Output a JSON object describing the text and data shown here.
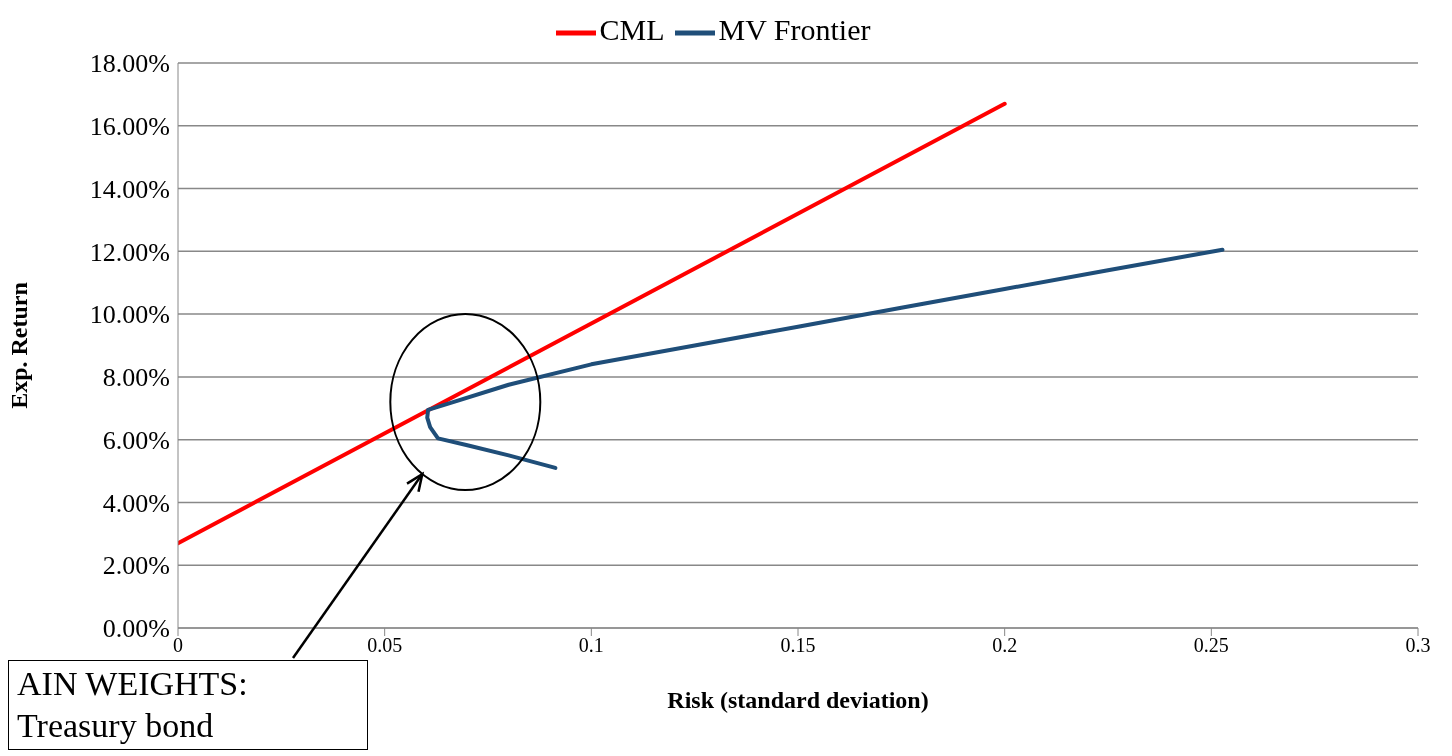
{
  "chart_data": {
    "type": "line",
    "xlabel": "Risk (standard deviation)",
    "ylabel": "Exp. Return",
    "xlim": [
      0,
      0.3
    ],
    "xticks": [
      0,
      0.05,
      0.1,
      0.15,
      0.2,
      0.25,
      0.3
    ],
    "ylim": [
      0,
      0.18
    ],
    "yticks": [
      {
        "value": 0,
        "label": "0.00%"
      },
      {
        "value": 0.02,
        "label": "2.00%"
      },
      {
        "value": 0.04,
        "label": "4.00%"
      },
      {
        "value": 0.06,
        "label": "6.00%"
      },
      {
        "value": 0.08,
        "label": "8.00%"
      },
      {
        "value": 0.1,
        "label": "10.00%"
      },
      {
        "value": 0.12,
        "label": "12.00%"
      },
      {
        "value": 0.14,
        "label": "14.00%"
      },
      {
        "value": 0.16,
        "label": "16.00%"
      },
      {
        "value": 0.18,
        "label": "18.00%"
      }
    ],
    "grid": "y",
    "legend": "top",
    "marker": "none",
    "line_style": "solid",
    "series": [
      {
        "name": "CML",
        "color": "#ff0000",
        "x": [
          0,
          0.2
        ],
        "values": [
          0.027,
          0.167
        ]
      },
      {
        "name": "MV Frontier",
        "color": "#1f4e79",
        "x": [
          0.0913,
          0.08,
          0.07,
          0.0629,
          0.061,
          0.0603,
          0.0605,
          0.065,
          0.08,
          0.1,
          0.125,
          0.15,
          0.175,
          0.2,
          0.225,
          0.2527
        ],
        "values": [
          0.051,
          0.055,
          0.0582,
          0.0604,
          0.064,
          0.067,
          0.0695,
          0.0713,
          0.0775,
          0.084,
          0.09,
          0.096,
          0.102,
          0.108,
          0.114,
          0.1205
        ]
      }
    ],
    "annotations": [
      "AIN WEIGHTS:\nTreasury bond"
    ]
  }
}
